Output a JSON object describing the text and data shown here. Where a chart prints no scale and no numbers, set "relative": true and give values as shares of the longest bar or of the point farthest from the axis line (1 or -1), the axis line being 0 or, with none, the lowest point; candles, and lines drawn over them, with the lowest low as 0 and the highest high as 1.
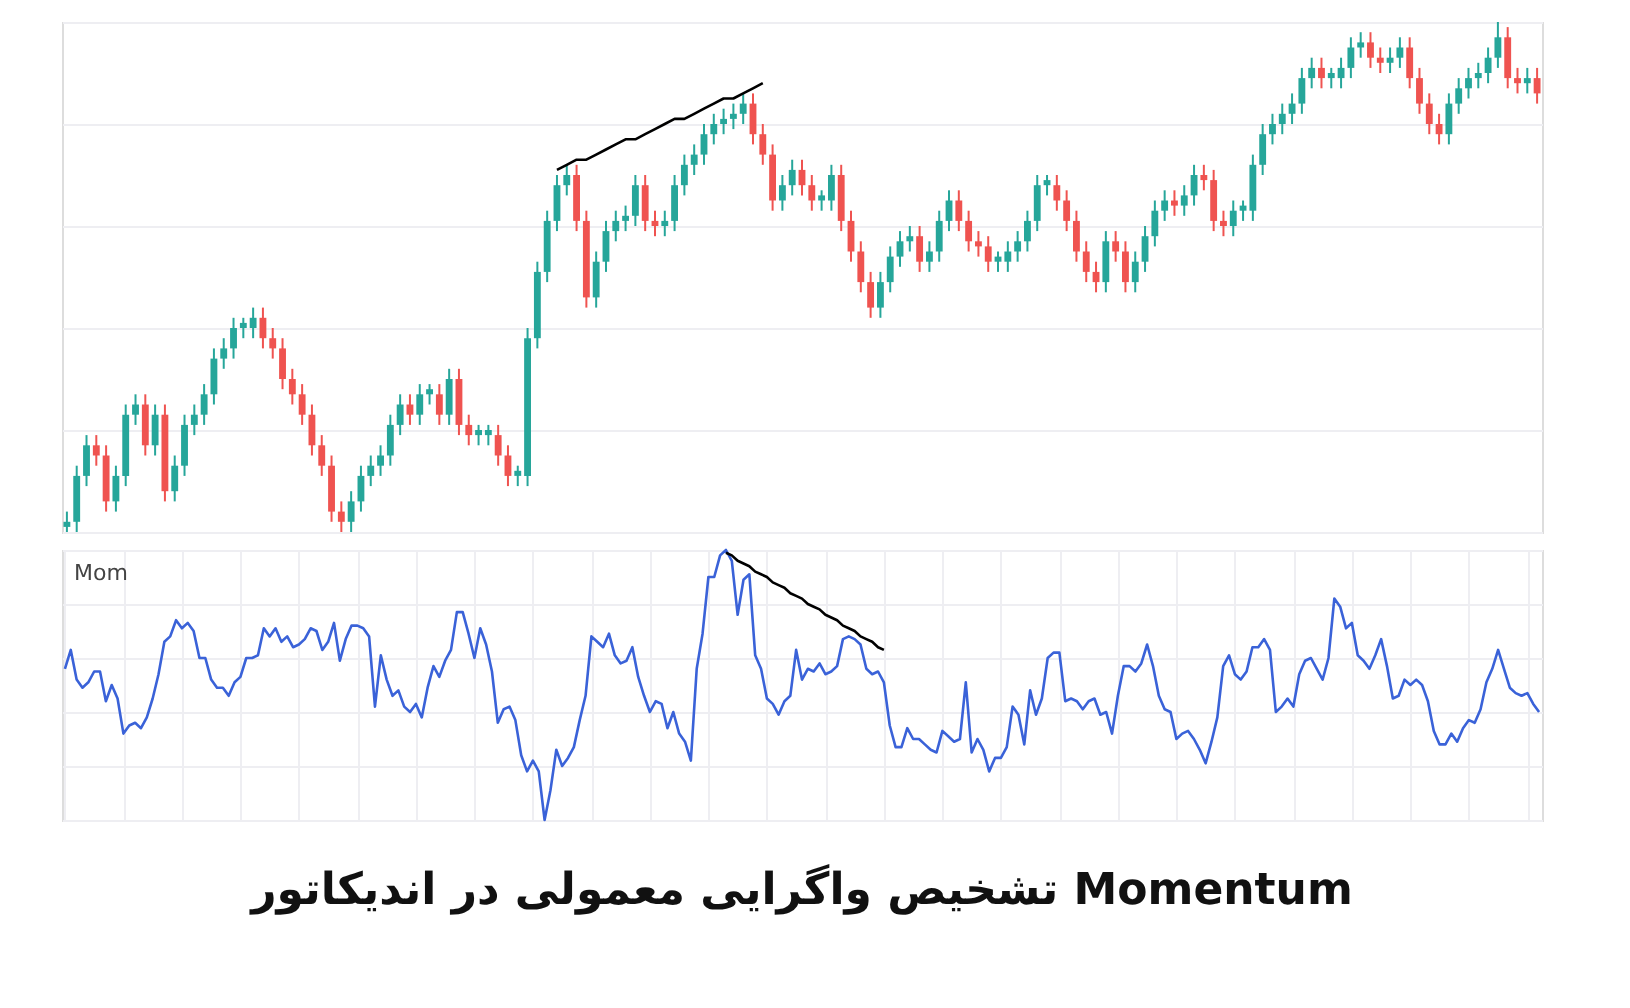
{
  "chart_data": [
    {
      "type": "candlestick",
      "relative": true,
      "grid": true,
      "categories": [
        null,
        null,
        null,
        null,
        null,
        null,
        null,
        null,
        null,
        null,
        null,
        null,
        null,
        null,
        null,
        null,
        null,
        null,
        null,
        null,
        null,
        null,
        null,
        null,
        null,
        null,
        null,
        null,
        null,
        null,
        null,
        null,
        null,
        null,
        null,
        null,
        null,
        null,
        null,
        null,
        null,
        null,
        null,
        null,
        null,
        null,
        null,
        null,
        null,
        null,
        null,
        null,
        null,
        null,
        null,
        null,
        null,
        null,
        null,
        null,
        null,
        null,
        null,
        null,
        null,
        null,
        null,
        null,
        null,
        null,
        null,
        null,
        null,
        null,
        null,
        null,
        null,
        null,
        null,
        null,
        null,
        null,
        null,
        null,
        null,
        null,
        null,
        null,
        null,
        null,
        null,
        null,
        null,
        null,
        null,
        null,
        null,
        null,
        null,
        null,
        null,
        null,
        null,
        null,
        null,
        null,
        null,
        null,
        null,
        null,
        null,
        null,
        null,
        null,
        null,
        null,
        null,
        null,
        null,
        null,
        null,
        null,
        null,
        null,
        null,
        null,
        null,
        null,
        null,
        null,
        null,
        null,
        null,
        null,
        null,
        null,
        null,
        null,
        null,
        null,
        null,
        null,
        null,
        null,
        null,
        null,
        null,
        null,
        null,
        null,
        null
      ],
      "ohlc": [
        [
          0.01,
          0.04,
          0,
          0.02
        ],
        [
          0.02,
          0.13,
          0,
          0.11
        ],
        [
          0.11,
          0.19,
          0.09,
          0.17
        ],
        [
          0.17,
          0.19,
          0.13,
          0.15
        ],
        [
          0.15,
          0.17,
          0.04,
          0.06
        ],
        [
          0.06,
          0.13,
          0.04,
          0.11
        ],
        [
          0.11,
          0.25,
          0.09,
          0.23
        ],
        [
          0.23,
          0.27,
          0.21,
          0.25
        ],
        [
          0.25,
          0.27,
          0.15,
          0.17
        ],
        [
          0.17,
          0.25,
          0.15,
          0.23
        ],
        [
          0.23,
          0.25,
          0.06,
          0.08
        ],
        [
          0.08,
          0.15,
          0.06,
          0.13
        ],
        [
          0.13,
          0.23,
          0.11,
          0.21
        ],
        [
          0.21,
          0.25,
          0.19,
          0.23
        ],
        [
          0.23,
          0.29,
          0.21,
          0.27
        ],
        [
          0.27,
          0.36,
          0.25,
          0.34
        ],
        [
          0.34,
          0.38,
          0.32,
          0.36
        ],
        [
          0.36,
          0.42,
          0.34,
          0.4
        ],
        [
          0.4,
          0.42,
          0.38,
          0.41
        ],
        [
          0.4,
          0.44,
          0.38,
          0.42
        ],
        [
          0.42,
          0.44,
          0.36,
          0.38
        ],
        [
          0.38,
          0.4,
          0.34,
          0.36
        ],
        [
          0.36,
          0.38,
          0.28,
          0.3
        ],
        [
          0.3,
          0.32,
          0.25,
          0.27
        ],
        [
          0.27,
          0.29,
          0.21,
          0.23
        ],
        [
          0.23,
          0.25,
          0.15,
          0.17
        ],
        [
          0.17,
          0.19,
          0.11,
          0.13
        ],
        [
          0.13,
          0.15,
          0.02,
          0.04
        ],
        [
          0.04,
          0.06,
          0,
          0.02
        ],
        [
          0.02,
          0.08,
          0,
          0.06
        ],
        [
          0.06,
          0.13,
          0.04,
          0.11
        ],
        [
          0.11,
          0.15,
          0.09,
          0.13
        ],
        [
          0.13,
          0.17,
          0.11,
          0.15
        ],
        [
          0.15,
          0.23,
          0.13,
          0.21
        ],
        [
          0.21,
          0.27,
          0.19,
          0.25
        ],
        [
          0.25,
          0.27,
          0.21,
          0.23
        ],
        [
          0.23,
          0.29,
          0.21,
          0.27
        ],
        [
          0.27,
          0.29,
          0.25,
          0.28
        ],
        [
          0.27,
          0.29,
          0.21,
          0.23
        ],
        [
          0.23,
          0.32,
          0.21,
          0.3
        ],
        [
          0.3,
          0.32,
          0.19,
          0.21
        ],
        [
          0.21,
          0.23,
          0.17,
          0.19
        ],
        [
          0.19,
          0.21,
          0.17,
          0.2
        ],
        [
          0.19,
          0.21,
          0.17,
          0.2
        ],
        [
          0.19,
          0.21,
          0.13,
          0.15
        ],
        [
          0.15,
          0.17,
          0.09,
          0.11
        ],
        [
          0.11,
          0.13,
          0.09,
          0.12
        ],
        [
          0.11,
          0.4,
          0.09,
          0.38
        ],
        [
          0.38,
          0.53,
          0.36,
          0.51
        ],
        [
          0.51,
          0.63,
          0.49,
          0.61
        ],
        [
          0.61,
          0.7,
          0.59,
          0.68
        ],
        [
          0.68,
          0.72,
          0.66,
          0.7
        ],
        [
          0.7,
          0.72,
          0.59,
          0.61
        ],
        [
          0.61,
          0.63,
          0.44,
          0.46
        ],
        [
          0.46,
          0.55,
          0.44,
          0.53
        ],
        [
          0.53,
          0.61,
          0.51,
          0.59
        ],
        [
          0.59,
          0.63,
          0.57,
          0.61
        ],
        [
          0.61,
          0.64,
          0.59,
          0.62
        ],
        [
          0.62,
          0.7,
          0.6,
          0.68
        ],
        [
          0.68,
          0.7,
          0.59,
          0.61
        ],
        [
          0.61,
          0.63,
          0.58,
          0.6
        ],
        [
          0.6,
          0.63,
          0.58,
          0.61
        ],
        [
          0.61,
          0.7,
          0.59,
          0.68
        ],
        [
          0.68,
          0.74,
          0.66,
          0.72
        ],
        [
          0.72,
          0.76,
          0.7,
          0.74
        ],
        [
          0.74,
          0.8,
          0.72,
          0.78
        ],
        [
          0.78,
          0.82,
          0.76,
          0.8
        ],
        [
          0.8,
          0.83,
          0.78,
          0.81
        ],
        [
          0.81,
          0.84,
          0.79,
          0.82
        ],
        [
          0.82,
          0.86,
          0.8,
          0.84
        ],
        [
          0.84,
          0.86,
          0.76,
          0.78
        ],
        [
          0.78,
          0.8,
          0.72,
          0.74
        ],
        [
          0.74,
          0.76,
          0.63,
          0.65
        ],
        [
          0.65,
          0.7,
          0.63,
          0.68
        ],
        [
          0.68,
          0.73,
          0.66,
          0.71
        ],
        [
          0.71,
          0.73,
          0.66,
          0.68
        ],
        [
          0.68,
          0.7,
          0.63,
          0.65
        ],
        [
          0.65,
          0.67,
          0.63,
          0.66
        ],
        [
          0.65,
          0.72,
          0.63,
          0.7
        ],
        [
          0.7,
          0.72,
          0.59,
          0.61
        ],
        [
          0.61,
          0.63,
          0.53,
          0.55
        ],
        [
          0.55,
          0.57,
          0.47,
          0.49
        ],
        [
          0.49,
          0.51,
          0.42,
          0.44
        ],
        [
          0.44,
          0.51,
          0.42,
          0.49
        ],
        [
          0.49,
          0.56,
          0.47,
          0.54
        ],
        [
          0.54,
          0.59,
          0.52,
          0.57
        ],
        [
          0.57,
          0.6,
          0.55,
          0.58
        ],
        [
          0.58,
          0.6,
          0.51,
          0.53
        ],
        [
          0.53,
          0.57,
          0.51,
          0.55
        ],
        [
          0.55,
          0.63,
          0.53,
          0.61
        ],
        [
          0.61,
          0.67,
          0.59,
          0.65
        ],
        [
          0.65,
          0.67,
          0.59,
          0.61
        ],
        [
          0.61,
          0.63,
          0.55,
          0.57
        ],
        [
          0.57,
          0.59,
          0.54,
          0.56
        ],
        [
          0.56,
          0.58,
          0.51,
          0.53
        ],
        [
          0.53,
          0.55,
          0.51,
          0.54
        ],
        [
          0.53,
          0.57,
          0.51,
          0.55
        ],
        [
          0.55,
          0.59,
          0.53,
          0.57
        ],
        [
          0.57,
          0.63,
          0.55,
          0.61
        ],
        [
          0.61,
          0.7,
          0.59,
          0.68
        ],
        [
          0.68,
          0.7,
          0.66,
          0.69
        ],
        [
          0.68,
          0.7,
          0.63,
          0.65
        ],
        [
          0.65,
          0.67,
          0.59,
          0.61
        ],
        [
          0.61,
          0.63,
          0.53,
          0.55
        ],
        [
          0.55,
          0.57,
          0.49,
          0.51
        ],
        [
          0.51,
          0.53,
          0.47,
          0.49
        ],
        [
          0.49,
          0.59,
          0.47,
          0.57
        ],
        [
          0.57,
          0.59,
          0.53,
          0.55
        ],
        [
          0.55,
          0.57,
          0.47,
          0.49
        ],
        [
          0.49,
          0.55,
          0.47,
          0.53
        ],
        [
          0.53,
          0.6,
          0.51,
          0.58
        ],
        [
          0.58,
          0.65,
          0.56,
          0.63
        ],
        [
          0.63,
          0.67,
          0.61,
          0.65
        ],
        [
          0.65,
          0.67,
          0.62,
          0.64
        ],
        [
          0.64,
          0.68,
          0.62,
          0.66
        ],
        [
          0.66,
          0.72,
          0.64,
          0.7
        ],
        [
          0.7,
          0.72,
          0.67,
          0.69
        ],
        [
          0.69,
          0.71,
          0.59,
          0.61
        ],
        [
          0.61,
          0.63,
          0.58,
          0.6
        ],
        [
          0.6,
          0.65,
          0.58,
          0.63
        ],
        [
          0.63,
          0.65,
          0.61,
          0.64
        ],
        [
          0.63,
          0.74,
          0.61,
          0.72
        ],
        [
          0.72,
          0.8,
          0.7,
          0.78
        ],
        [
          0.78,
          0.82,
          0.76,
          0.8
        ],
        [
          0.8,
          0.84,
          0.78,
          0.82
        ],
        [
          0.82,
          0.86,
          0.8,
          0.84
        ],
        [
          0.84,
          0.91,
          0.82,
          0.89
        ],
        [
          0.89,
          0.93,
          0.87,
          0.91
        ],
        [
          0.91,
          0.93,
          0.87,
          0.89
        ],
        [
          0.89,
          0.91,
          0.87,
          0.9
        ],
        [
          0.89,
          0.93,
          0.87,
          0.91
        ],
        [
          0.91,
          0.97,
          0.89,
          0.95
        ],
        [
          0.95,
          0.98,
          0.93,
          0.96
        ],
        [
          0.96,
          0.98,
          0.91,
          0.93
        ],
        [
          0.93,
          0.95,
          0.9,
          0.92
        ],
        [
          0.92,
          0.95,
          0.9,
          0.93
        ],
        [
          0.93,
          0.97,
          0.91,
          0.95
        ],
        [
          0.95,
          0.97,
          0.87,
          0.89
        ],
        [
          0.89,
          0.91,
          0.82,
          0.84
        ],
        [
          0.84,
          0.86,
          0.78,
          0.8
        ],
        [
          0.8,
          0.82,
          0.76,
          0.78
        ],
        [
          0.78,
          0.86,
          0.76,
          0.84
        ],
        [
          0.84,
          0.89,
          0.82,
          0.87
        ],
        [
          0.87,
          0.91,
          0.85,
          0.89
        ],
        [
          0.89,
          0.92,
          0.87,
          0.9
        ],
        [
          0.9,
          0.95,
          0.88,
          0.93
        ],
        [
          0.93,
          1,
          0.91,
          0.97
        ],
        [
          0.97,
          0.99,
          0.87,
          0.89
        ],
        [
          0.89,
          0.91,
          0.86,
          0.88
        ],
        [
          0.88,
          0.91,
          0.86,
          0.89
        ],
        [
          0.89,
          0.91,
          0.84,
          0.86
        ]
      ],
      "colors": [
        "#26a69a",
        "#26a69a",
        "#26a69a",
        "#ef5350",
        "#ef5350",
        "#26a69a",
        "#26a69a",
        "#26a69a",
        "#ef5350",
        "#26a69a",
        "#ef5350",
        "#26a69a",
        "#26a69a",
        "#26a69a",
        "#26a69a",
        "#26a69a",
        "#26a69a",
        "#26a69a",
        "#26a69a",
        "#26a69a",
        "#ef5350",
        "#ef5350",
        "#ef5350",
        "#ef5350",
        "#ef5350",
        "#ef5350",
        "#ef5350",
        "#ef5350",
        "#ef5350",
        "#26a69a",
        "#26a69a",
        "#26a69a",
        "#26a69a",
        "#26a69a",
        "#26a69a",
        "#ef5350",
        "#26a69a",
        "#26a69a",
        "#ef5350",
        "#26a69a",
        "#ef5350",
        "#ef5350",
        "#26a69a",
        "#26a69a",
        "#ef5350",
        "#ef5350",
        "#26a69a",
        "#26a69a",
        "#26a69a",
        "#26a69a",
        "#26a69a",
        "#26a69a",
        "#ef5350",
        "#ef5350",
        "#26a69a",
        "#26a69a",
        "#26a69a",
        "#26a69a",
        "#26a69a",
        "#ef5350",
        "#ef5350",
        "#26a69a",
        "#26a69a",
        "#26a69a",
        "#26a69a",
        "#26a69a",
        "#26a69a",
        "#26a69a",
        "#26a69a",
        "#26a69a",
        "#ef5350",
        "#ef5350",
        "#ef5350",
        "#26a69a",
        "#26a69a",
        "#ef5350",
        "#ef5350",
        "#26a69a",
        "#26a69a",
        "#ef5350",
        "#ef5350",
        "#ef5350",
        "#ef5350",
        "#26a69a",
        "#26a69a",
        "#26a69a",
        "#26a69a",
        "#ef5350",
        "#26a69a",
        "#26a69a",
        "#26a69a",
        "#ef5350",
        "#ef5350",
        "#ef5350",
        "#ef5350",
        "#26a69a",
        "#26a69a",
        "#26a69a",
        "#26a69a",
        "#26a69a",
        "#26a69a",
        "#ef5350",
        "#ef5350",
        "#ef5350",
        "#ef5350",
        "#ef5350",
        "#26a69a",
        "#ef5350",
        "#ef5350",
        "#26a69a",
        "#26a69a",
        "#26a69a",
        "#26a69a",
        "#ef5350",
        "#26a69a",
        "#26a69a",
        "#ef5350",
        "#ef5350",
        "#ef5350",
        "#26a69a",
        "#26a69a",
        "#26a69a",
        "#26a69a",
        "#26a69a",
        "#26a69a",
        "#26a69a",
        "#26a69a",
        "#26a69a",
        "#ef5350",
        "#26a69a",
        "#26a69a",
        "#26a69a",
        "#26a69a",
        "#ef5350",
        "#ef5350",
        "#26a69a",
        "#26a69a",
        "#ef5350",
        "#ef5350",
        "#ef5350",
        "#ef5350",
        "#26a69a",
        "#26a69a",
        "#26a69a",
        "#26a69a",
        "#26a69a",
        "#26a69a",
        "#ef5350",
        "#ef5350",
        "#26a69a",
        "#ef5350"
      ],
      "series": [
        {
          "type": "line",
          "color": "#000000",
          "values": [
            null,
            null,
            null,
            null,
            null,
            null,
            null,
            null,
            null,
            null,
            null,
            null,
            null,
            null,
            null,
            null,
            null,
            null,
            null,
            null,
            null,
            null,
            null,
            null,
            null,
            null,
            null,
            null,
            null,
            null,
            null,
            null,
            null,
            null,
            null,
            null,
            null,
            null,
            null,
            null,
            null,
            null,
            null,
            null,
            null,
            null,
            null,
            null,
            null,
            null,
            0.71,
            0.72,
            0.73,
            0.73,
            0.74,
            0.75,
            0.76,
            0.77,
            0.77,
            0.78,
            0.79,
            0.8,
            0.81,
            0.81,
            0.82,
            0.83,
            0.84,
            0.85,
            0.85,
            0.86,
            0.87,
            0.88,
            null,
            null,
            null,
            null,
            null,
            null,
            null,
            null,
            null,
            null,
            null,
            null,
            null,
            null,
            null,
            null,
            null,
            null,
            null,
            null,
            null,
            null,
            null,
            null,
            null,
            null,
            null,
            null,
            null,
            null,
            null,
            null,
            null,
            null,
            null,
            null,
            null,
            null,
            null,
            null,
            null,
            null,
            null,
            null,
            null,
            null,
            null,
            null,
            null,
            null,
            null,
            null,
            null,
            null,
            null,
            null,
            null,
            null,
            null,
            null,
            null,
            null,
            null,
            null,
            null,
            null,
            null,
            null,
            null,
            null,
            null,
            null,
            null,
            null,
            null,
            null,
            null,
            null,
            null
          ]
        }
      ]
    },
    {
      "type": "line",
      "title": "Mom",
      "relative": true,
      "grid": true,
      "categories": [
        null,
        null,
        null,
        null,
        null,
        null,
        null,
        null,
        null,
        null,
        null,
        null,
        null,
        null,
        null,
        null,
        null,
        null,
        null,
        null,
        null,
        null,
        null,
        null,
        null,
        null,
        null,
        null,
        null,
        null,
        null,
        null,
        null,
        null,
        null,
        null,
        null,
        null,
        null,
        null,
        null,
        null,
        null,
        null,
        null,
        null,
        null,
        null,
        null,
        null,
        null,
        null,
        null,
        null,
        null,
        null,
        null,
        null,
        null,
        null,
        null,
        null,
        null,
        null,
        null,
        null,
        null,
        null,
        null,
        null,
        null,
        null,
        null,
        null,
        null,
        null,
        null,
        null,
        null,
        null,
        null,
        null,
        null,
        null,
        null,
        null,
        null,
        null,
        null,
        null,
        null,
        null,
        null,
        null,
        null,
        null,
        null,
        null,
        null,
        null,
        null,
        null,
        null,
        null,
        null,
        null,
        null,
        null,
        null,
        null,
        null,
        null,
        null,
        null,
        null,
        null,
        null,
        null,
        null,
        null,
        null,
        null,
        null,
        null,
        null,
        null,
        null,
        null,
        null,
        null,
        null,
        null,
        null,
        null,
        null,
        null,
        null,
        null,
        null,
        null,
        null,
        null,
        null,
        null,
        null,
        null,
        null,
        null,
        null,
        null,
        null,
        null,
        null,
        null,
        null,
        null,
        null,
        null,
        null,
        null,
        null,
        null,
        null,
        null,
        null,
        null,
        null,
        null,
        null,
        null,
        null,
        null,
        null,
        null,
        null,
        null,
        null,
        null,
        null,
        null,
        null,
        null,
        null,
        null,
        null,
        null,
        null,
        null,
        null,
        null,
        null,
        null,
        null,
        null,
        null,
        null,
        null,
        null,
        null,
        null,
        null,
        null,
        null,
        null,
        null,
        null,
        null,
        null,
        null,
        null,
        null,
        null,
        null,
        null,
        null,
        null,
        null,
        null,
        null,
        null,
        null,
        null,
        null,
        null,
        null,
        null,
        null,
        null,
        null,
        null,
        null,
        null,
        null,
        null,
        null,
        null,
        null,
        null,
        null,
        null,
        null,
        null,
        null,
        null,
        null,
        null,
        null,
        null,
        null,
        null,
        null,
        null,
        null
      ],
      "series": [
        {
          "color": "#3a62d8",
          "values": [
            0.56,
            0.63,
            0.52,
            0.49,
            0.51,
            0.55,
            0.55,
            0.44,
            0.5,
            0.45,
            0.32,
            0.35,
            0.36,
            0.34,
            0.38,
            0.45,
            0.54,
            0.66,
            0.68,
            0.74,
            0.71,
            0.73,
            0.7,
            0.6,
            0.6,
            0.52,
            0.49,
            0.49,
            0.46,
            0.51,
            0.53,
            0.6,
            0.6,
            0.61,
            0.71,
            0.68,
            0.71,
            0.66,
            0.68,
            0.64,
            0.65,
            0.67,
            0.71,
            0.7,
            0.63,
            0.66,
            0.73,
            0.59,
            0.67,
            0.72,
            0.72,
            0.71,
            0.68,
            0.42,
            0.61,
            0.52,
            0.46,
            0.48,
            0.42,
            0.4,
            0.43,
            0.38,
            0.49,
            0.57,
            0.53,
            0.59,
            0.63,
            0.77,
            0.77,
            0.69,
            0.6,
            0.71,
            0.65,
            0.55,
            0.36,
            0.41,
            0.42,
            0.37,
            0.24,
            0.18,
            0.22,
            0.18,
            0,
            0.11,
            0.26,
            0.2,
            0.23,
            0.27,
            0.37,
            0.46,
            0.68,
            0.66,
            0.64,
            0.69,
            0.61,
            0.58,
            0.59,
            0.64,
            0.53,
            0.46,
            0.4,
            0.44,
            0.43,
            0.34,
            0.4,
            0.32,
            0.29,
            0.22,
            0.56,
            0.69,
            0.9,
            0.9,
            0.98,
            1,
            0.96,
            0.76,
            0.89,
            0.91,
            0.61,
            0.56,
            0.45,
            0.43,
            0.39,
            0.44,
            0.46,
            0.63,
            0.52,
            0.56,
            0.55,
            0.58,
            0.54,
            0.55,
            0.57,
            0.67,
            0.68,
            0.67,
            0.65,
            0.56,
            0.54,
            0.55,
            0.51,
            0.35,
            0.27,
            0.27,
            0.34,
            0.3,
            0.3,
            0.28,
            0.26,
            0.25,
            0.33,
            0.31,
            0.29,
            0.3,
            0.51,
            0.25,
            0.3,
            0.26,
            0.18,
            0.23,
            0.23,
            0.27,
            0.42,
            0.39,
            0.28,
            0.48,
            0.39,
            0.45,
            0.6,
            0.62,
            0.62,
            0.44,
            0.45,
            0.44,
            0.41,
            0.44,
            0.45,
            0.39,
            0.4,
            0.32,
            0.46,
            0.57,
            0.57,
            0.55,
            0.58,
            0.65,
            0.57,
            0.46,
            0.41,
            0.4,
            0.3,
            0.32,
            0.33,
            0.3,
            0.26,
            0.21,
            0.29,
            0.38,
            0.57,
            0.61,
            0.54,
            0.52,
            0.55,
            0.64,
            0.64,
            0.67,
            0.63,
            0.4,
            0.42,
            0.45,
            0.42,
            0.54,
            0.59,
            0.6,
            0.56,
            0.52,
            0.6,
            0.82,
            0.79,
            0.71,
            0.73,
            0.61,
            0.59,
            0.56,
            0.61,
            0.67,
            0.57,
            0.45,
            0.46,
            0.52,
            0.5,
            0.52,
            0.5,
            0.44,
            0.33,
            0.28,
            0.28,
            0.32,
            0.29,
            0.34,
            0.37,
            0.36,
            0.41,
            0.51,
            0.56,
            0.63,
            0.56,
            0.49,
            0.47,
            0.46,
            0.47,
            0.43,
            0.4
          ]
        },
        {
          "type": "line",
          "color": "#000000",
          "values": [
            null,
            null,
            null,
            null,
            null,
            null,
            null,
            null,
            null,
            null,
            null,
            null,
            null,
            null,
            null,
            null,
            null,
            null,
            null,
            null,
            null,
            null,
            null,
            null,
            null,
            null,
            null,
            null,
            null,
            null,
            null,
            null,
            null,
            null,
            null,
            null,
            null,
            null,
            null,
            null,
            null,
            null,
            null,
            null,
            null,
            null,
            null,
            null,
            null,
            null,
            null,
            null,
            null,
            null,
            null,
            null,
            null,
            null,
            null,
            null,
            null,
            null,
            null,
            null,
            null,
            null,
            null,
            null,
            null,
            null,
            null,
            null,
            null,
            null,
            null,
            null,
            null,
            null,
            null,
            null,
            null,
            null,
            null,
            null,
            null,
            null,
            null,
            null,
            null,
            null,
            null,
            null,
            null,
            null,
            null,
            null,
            null,
            null,
            null,
            null,
            null,
            null,
            null,
            null,
            null,
            null,
            null,
            null,
            null,
            null,
            null,
            null,
            null,
            0.99,
            0.98,
            0.96,
            0.95,
            0.94,
            0.92,
            0.91,
            0.9,
            0.88,
            0.87,
            0.86,
            0.84,
            0.83,
            0.82,
            0.8,
            0.79,
            0.78,
            0.76,
            0.75,
            0.74,
            0.72,
            0.71,
            0.7,
            0.68,
            0.67,
            0.66,
            0.64,
            0.63,
            null,
            null,
            null,
            null,
            null,
            null,
            null,
            null,
            null,
            null,
            null,
            null,
            null,
            null,
            null,
            null,
            null,
            null,
            null,
            null,
            null,
            null,
            null,
            null,
            null,
            null,
            null,
            null,
            null,
            null,
            null,
            null,
            null,
            null,
            null,
            null,
            null,
            null,
            null,
            null,
            null,
            null,
            null,
            null,
            null,
            null,
            null,
            null,
            null,
            null,
            null,
            null,
            null,
            null,
            null,
            null,
            null,
            null,
            null,
            null,
            null,
            null,
            null,
            null,
            null,
            null,
            null,
            null,
            null,
            null,
            null,
            null,
            null,
            null,
            null,
            null,
            null,
            null,
            null,
            null,
            null,
            null,
            null,
            null,
            null,
            null,
            null,
            null,
            null,
            null,
            null,
            null,
            null,
            null,
            null,
            null,
            null,
            null,
            null,
            null,
            null,
            null,
            null,
            null,
            null,
            null,
            null,
            null,
            null,
            null,
            null,
            null
          ]
        }
      ],
      "annotations": [
        "تشخیص واگرایی معمولی در اندیکاتور Momentum"
      ]
    }
  ]
}
